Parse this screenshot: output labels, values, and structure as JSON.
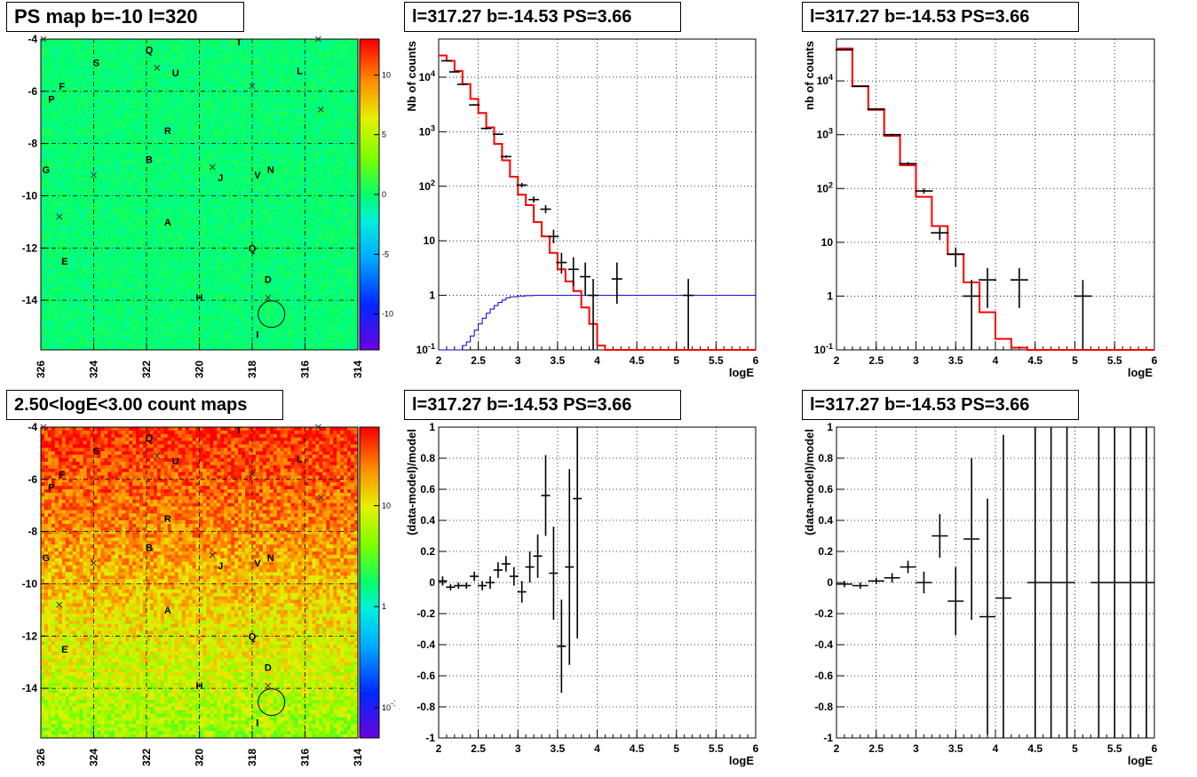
{
  "colors": {
    "hist_red": "#ff0000",
    "model_blue": "#0000cc",
    "grid": "#000000",
    "points": "#000000"
  },
  "panels": {
    "map1": {
      "title": "PS map b=-10 l=320"
    },
    "map2": {
      "title": "2.50<logE<3.00 count maps"
    },
    "spec1": {
      "title": "l=317.27 b=-14.53 PS=3.66"
    },
    "spec2": {
      "title": "l=317.27 b=-14.53 PS=3.66"
    },
    "res1": {
      "title": "l=317.27 b=-14.53 PS=3.66"
    },
    "res2": {
      "title": "l=317.27 b=-14.53 PS=3.66"
    }
  },
  "chart_data": [
    {
      "id": "map1",
      "type": "heatmap",
      "title": "PS map b=-10 l=320",
      "xlim": [
        326,
        314
      ],
      "ylim": [
        -15.9,
        -4
      ],
      "x_ticks": [
        "326",
        "324",
        "322",
        "320",
        "318",
        "316",
        "314"
      ],
      "y_ticks": [
        "-4",
        "-6",
        "-8",
        "-10",
        "-12",
        "-14"
      ],
      "colorbar": {
        "scale": "linear",
        "ticks": [
          "10",
          "5",
          "0",
          "-5",
          "-10"
        ],
        "range": [
          -13,
          13
        ]
      },
      "background_level": "green (~0)",
      "source_labels": [
        {
          "t": "Q",
          "l": 321.9,
          "b": -4.4
        },
        {
          "t": "T",
          "l": 318.5,
          "b": -4.1
        },
        {
          "t": "S",
          "l": 323.9,
          "b": -4.9
        },
        {
          "t": "L",
          "l": 316.2,
          "b": -5.2
        },
        {
          "t": "U",
          "l": 320.9,
          "b": -5.3
        },
        {
          "t": "F",
          "l": 325.2,
          "b": -5.8
        },
        {
          "t": "P",
          "l": 325.6,
          "b": -6.3
        },
        {
          "t": "R",
          "l": 321.2,
          "b": -7.5
        },
        {
          "t": "B",
          "l": 321.9,
          "b": -8.6
        },
        {
          "t": "J",
          "l": 319.2,
          "b": -9.3
        },
        {
          "t": "V",
          "l": 317.8,
          "b": -9.2
        },
        {
          "t": "N",
          "l": 317.3,
          "b": -9.0
        },
        {
          "t": "G",
          "l": 325.8,
          "b": -9.0
        },
        {
          "t": "A",
          "l": 321.2,
          "b": -11.0
        },
        {
          "t": "Q",
          "l": 318.0,
          "b": -12.0
        },
        {
          "t": "E",
          "l": 325.1,
          "b": -12.5
        },
        {
          "t": "D",
          "l": 317.4,
          "b": -13.2
        },
        {
          "t": "H",
          "l": 320.0,
          "b": -13.9
        },
        {
          "t": "I",
          "l": 317.8,
          "b": -15.3
        }
      ],
      "crosses": [
        [
          325.9,
          -4.0
        ],
        [
          315.5,
          -4.0
        ],
        [
          321.6,
          -5.1
        ],
        [
          318.0,
          -5.8
        ],
        [
          315.4,
          -6.7
        ],
        [
          324.0,
          -9.2
        ],
        [
          319.5,
          -8.9
        ],
        [
          325.3,
          -10.8
        ],
        [
          317.4,
          -13.9
        ]
      ],
      "circle": {
        "l": 317.27,
        "b": -14.53
      }
    },
    {
      "id": "map2",
      "type": "heatmap",
      "title": "2.50<logE<3.00 count maps",
      "xlim": [
        326,
        314
      ],
      "ylim": [
        -15.9,
        -4
      ],
      "x_ticks": [
        "326",
        "324",
        "322",
        "320",
        "318",
        "316",
        "314"
      ],
      "y_ticks": [
        "-4",
        "-6",
        "-8",
        "-10",
        "-12",
        "-14"
      ],
      "colorbar": {
        "scale": "log",
        "ticks": [
          "10",
          "1",
          "10^-1"
        ],
        "range": [
          0.05,
          60
        ]
      },
      "background_level": "red/orange at top fading to yellow-green at bottom",
      "source_labels": "same as map1",
      "crosses": "same as map1",
      "circle": {
        "l": 317.27,
        "b": -14.53
      }
    },
    {
      "id": "spec1",
      "type": "line",
      "title": "l=317.27 b=-14.53 PS=3.66",
      "xlabel": "logE",
      "ylabel": "Nb of counts",
      "yscale": "log",
      "xlim": [
        2,
        6
      ],
      "ylim": [
        0.1,
        50000
      ],
      "x_ticks": [
        "2",
        "2.5",
        "3",
        "3.5",
        "4",
        "4.5",
        "5",
        "5.5",
        "6"
      ],
      "y_ticks": [
        "10^-1",
        "1",
        "10",
        "10^2",
        "10^3",
        "10^4"
      ],
      "model_step": {
        "edges": [
          2.0,
          2.1,
          2.2,
          2.3,
          2.4,
          2.5,
          2.6,
          2.7,
          2.8,
          2.9,
          3.0,
          3.1,
          3.2,
          3.3,
          3.4,
          3.5,
          3.6,
          3.7,
          3.8,
          3.9,
          4.0,
          4.1,
          4.2
        ],
        "values": [
          25000,
          20000,
          13000,
          7500,
          4000,
          2200,
          1200,
          600,
          300,
          150,
          70,
          45,
          22,
          12,
          6,
          3,
          1.8,
          1.2,
          0.6,
          0.3,
          0.12,
          0.1
        ]
      },
      "psf_model_step": {
        "edges": [
          2.0,
          2.3,
          2.35,
          2.4,
          2.45,
          2.5,
          2.55,
          2.6,
          2.65,
          2.7,
          2.75,
          2.8,
          2.85,
          2.9,
          3.0,
          3.1,
          3.2,
          3.3,
          3.4,
          6.0
        ],
        "values": [
          0.1,
          0.12,
          0.14,
          0.18,
          0.23,
          0.3,
          0.38,
          0.47,
          0.56,
          0.65,
          0.74,
          0.82,
          0.9,
          0.94,
          0.97,
          0.99,
          1.0,
          1.0,
          1.0
        ]
      },
      "data": [
        {
          "x": 2.1,
          "y": 20000,
          "yerr": [
            19800,
            20200
          ]
        },
        {
          "x": 2.2,
          "y": 12500,
          "yerr": [
            12300,
            12700
          ]
        },
        {
          "x": 2.3,
          "y": 7400,
          "yerr": [
            7300,
            7500
          ]
        },
        {
          "x": 2.45,
          "y": 3100,
          "yerr": [
            3000,
            3200
          ]
        },
        {
          "x": 2.6,
          "y": 1150,
          "yerr": [
            1100,
            1200
          ]
        },
        {
          "x": 2.75,
          "y": 900,
          "yerr": [
            870,
            930
          ]
        },
        {
          "x": 2.85,
          "y": 350,
          "yerr": [
            330,
            370
          ]
        },
        {
          "x": 3.05,
          "y": 105,
          "yerr": [
            95,
            115
          ]
        },
        {
          "x": 3.2,
          "y": 57,
          "yerr": [
            50,
            65
          ]
        },
        {
          "x": 3.35,
          "y": 38,
          "yerr": [
            32,
            45
          ]
        },
        {
          "x": 3.45,
          "y": 12,
          "yerr": [
            9,
            16
          ]
        },
        {
          "x": 3.55,
          "y": 4,
          "yerr": [
            2.5,
            6
          ]
        },
        {
          "x": 3.7,
          "y": 3,
          "yerr": [
            1.5,
            5
          ]
        },
        {
          "x": 3.85,
          "y": 2.2,
          "yerr": [
            1,
            4
          ]
        },
        {
          "x": 3.95,
          "y": 1,
          "yerr": [
            0.1,
            2
          ]
        },
        {
          "x": 4.25,
          "y": 2,
          "yerr": [
            0.7,
            4
          ]
        },
        {
          "x": 5.15,
          "y": 1,
          "yerr": [
            0.1,
            2
          ]
        }
      ]
    },
    {
      "id": "spec2",
      "type": "line",
      "title": "l=317.27 b=-14.53 PS=3.66",
      "xlabel": "logE",
      "ylabel": "nb of counts",
      "yscale": "log",
      "xlim": [
        2,
        6
      ],
      "ylim": [
        0.1,
        60000
      ],
      "x_ticks": [
        "2",
        "2.5",
        "3",
        "3.5",
        "4",
        "4.5",
        "5",
        "5.5",
        "6"
      ],
      "y_ticks": [
        "10^-1",
        "1",
        "10",
        "10^2",
        "10^3",
        "10^4"
      ],
      "model_step": {
        "edges": [
          2.0,
          2.2,
          2.4,
          2.6,
          2.8,
          3.0,
          3.2,
          3.4,
          3.6,
          3.8,
          4.0,
          4.2,
          4.4,
          4.6,
          6.0
        ],
        "values": [
          40000,
          8000,
          2900,
          950,
          270,
          70,
          20,
          6,
          1.8,
          0.5,
          0.16,
          0.11,
          0.1,
          0.1
        ]
      },
      "data": [
        {
          "x": 2.1,
          "y": 38000,
          "yerr": [
            37500,
            38500
          ]
        },
        {
          "x": 2.3,
          "y": 7900,
          "yerr": [
            7700,
            8100
          ]
        },
        {
          "x": 2.5,
          "y": 3000,
          "yerr": [
            2900,
            3100
          ]
        },
        {
          "x": 2.7,
          "y": 1000,
          "yerr": [
            960,
            1040
          ]
        },
        {
          "x": 2.9,
          "y": 290,
          "yerr": [
            270,
            310
          ]
        },
        {
          "x": 3.1,
          "y": 90,
          "yerr": [
            80,
            100
          ]
        },
        {
          "x": 3.3,
          "y": 15,
          "yerr": [
            11,
            19
          ]
        },
        {
          "x": 3.5,
          "y": 6,
          "yerr": [
            3.5,
            8
          ]
        },
        {
          "x": 3.7,
          "y": 1,
          "yerr": [
            0.1,
            2
          ]
        },
        {
          "x": 3.9,
          "y": 2,
          "yerr": [
            0.6,
            3.3
          ]
        },
        {
          "x": 4.3,
          "y": 2,
          "yerr": [
            0.6,
            3.3
          ]
        },
        {
          "x": 5.1,
          "y": 1,
          "yerr": [
            0.1,
            2
          ]
        }
      ]
    },
    {
      "id": "res1",
      "type": "scatter",
      "title": "l=317.27 b=-14.53 PS=3.66",
      "xlabel": "logE",
      "ylabel": "(data-model)/model",
      "xlim": [
        2,
        6
      ],
      "ylim": [
        -1,
        1
      ],
      "x_ticks": [
        "2",
        "2.5",
        "3",
        "3.5",
        "4",
        "4.5",
        "5",
        "5.5",
        "6"
      ],
      "y_ticks": [
        "-1",
        "-0.8",
        "-0.6",
        "-0.4",
        "-0.2",
        "0",
        "0.2",
        "0.4",
        "0.6",
        "0.8",
        "1"
      ],
      "data": [
        {
          "x": 2.05,
          "y": 0.01,
          "yerr": 0.03
        },
        {
          "x": 2.15,
          "y": -0.03,
          "yerr": 0.02
        },
        {
          "x": 2.25,
          "y": -0.02,
          "yerr": 0.02
        },
        {
          "x": 2.35,
          "y": -0.02,
          "yerr": 0.02
        },
        {
          "x": 2.45,
          "y": 0.04,
          "yerr": 0.03
        },
        {
          "x": 2.55,
          "y": -0.02,
          "yerr": 0.03
        },
        {
          "x": 2.65,
          "y": 0.0,
          "yerr": 0.04
        },
        {
          "x": 2.75,
          "y": 0.08,
          "yerr": 0.05
        },
        {
          "x": 2.85,
          "y": 0.12,
          "yerr": 0.05
        },
        {
          "x": 2.95,
          "y": 0.04,
          "yerr": 0.06
        },
        {
          "x": 3.05,
          "y": -0.06,
          "yerr": 0.07
        },
        {
          "x": 3.15,
          "y": 0.1,
          "yerr": 0.1
        },
        {
          "x": 3.25,
          "y": 0.17,
          "yerr": 0.14
        },
        {
          "x": 3.35,
          "y": 0.56,
          "yerr": 0.26
        },
        {
          "x": 3.45,
          "y": 0.06,
          "yerr": 0.3
        },
        {
          "x": 3.55,
          "y": -0.41,
          "yerr": 0.3
        },
        {
          "x": 3.65,
          "y": 0.1,
          "yerr": 0.63
        },
        {
          "x": 3.75,
          "y": 0.54,
          "yerr": 0.9
        }
      ]
    },
    {
      "id": "res2",
      "type": "scatter",
      "title": "l=317.27 b=-14.53 PS=3.66",
      "xlabel": "logE",
      "ylabel": "(data-model)/model",
      "xlim": [
        2,
        6
      ],
      "ylim": [
        -1,
        1
      ],
      "x_ticks": [
        "2",
        "2.5",
        "3",
        "3.5",
        "4",
        "4.5",
        "5",
        "5.5",
        "6"
      ],
      "y_ticks": [
        "-1",
        "-0.8",
        "-0.6",
        "-0.4",
        "-0.2",
        "0",
        "0.2",
        "0.4",
        "0.6",
        "0.8",
        "1"
      ],
      "data": [
        {
          "x": 2.1,
          "y": -0.01,
          "yerr": 0.02
        },
        {
          "x": 2.3,
          "y": -0.02,
          "yerr": 0.02
        },
        {
          "x": 2.5,
          "y": 0.01,
          "yerr": 0.02
        },
        {
          "x": 2.7,
          "y": 0.03,
          "yerr": 0.03
        },
        {
          "x": 2.9,
          "y": 0.1,
          "yerr": 0.04
        },
        {
          "x": 3.1,
          "y": 0.0,
          "yerr": 0.07
        },
        {
          "x": 3.3,
          "y": 0.3,
          "yerr": 0.14
        },
        {
          "x": 3.5,
          "y": -0.12,
          "yerr": 0.22
        },
        {
          "x": 3.7,
          "y": 0.28,
          "yerr": 0.52
        },
        {
          "x": 3.9,
          "y": -0.22,
          "yerr": 0.76
        },
        {
          "x": 4.1,
          "y": -0.1,
          "yerr": 1.05
        },
        {
          "x": 4.5,
          "y": 0,
          "yerr": 1.5
        },
        {
          "x": 4.7,
          "y": 0,
          "yerr": 1.5
        },
        {
          "x": 4.9,
          "y": 0,
          "yerr": 1.5
        },
        {
          "x": 5.3,
          "y": 0,
          "yerr": 1.5
        },
        {
          "x": 5.5,
          "y": 0,
          "yerr": 1.5
        },
        {
          "x": 5.7,
          "y": 0,
          "yerr": 1.5
        },
        {
          "x": 5.9,
          "y": 0,
          "yerr": 1.5
        }
      ]
    }
  ]
}
